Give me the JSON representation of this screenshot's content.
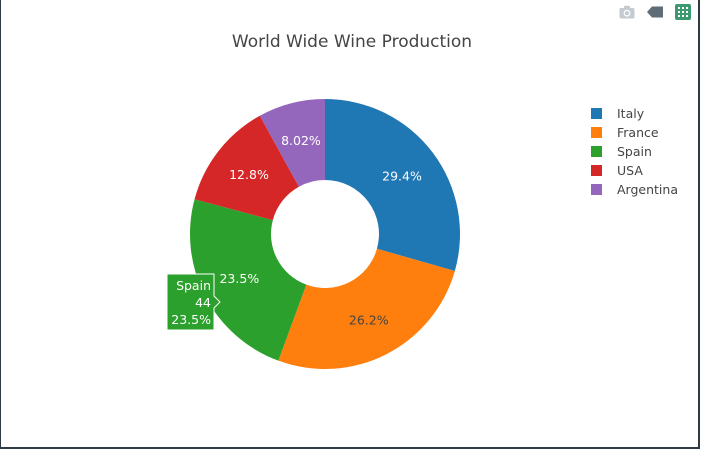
{
  "modebar": {
    "icons": [
      "camera-icon",
      "tag-icon",
      "chart-studio-icon"
    ],
    "accent": "#3d9970"
  },
  "chart_data": {
    "type": "pie",
    "hole": true,
    "title": "World Wide Wine Production",
    "labels": [
      "Italy",
      "France",
      "Spain",
      "USA",
      "Argentina"
    ],
    "values": [
      55,
      49,
      44,
      24,
      15
    ],
    "percent_labels": [
      "29.4%",
      "26.2%",
      "23.5%",
      "12.8%",
      "8.02%"
    ],
    "colors": [
      "#1f77b4",
      "#ff7f0e",
      "#2ca02c",
      "#d62728",
      "#9467bd"
    ],
    "text_colors": [
      "#ffffff",
      "#444444",
      "#ffffff",
      "#ffffff",
      "#ffffff"
    ],
    "legend_position": "right",
    "hover": {
      "label": "Spain",
      "value": "44",
      "percent": "23.5%"
    }
  }
}
